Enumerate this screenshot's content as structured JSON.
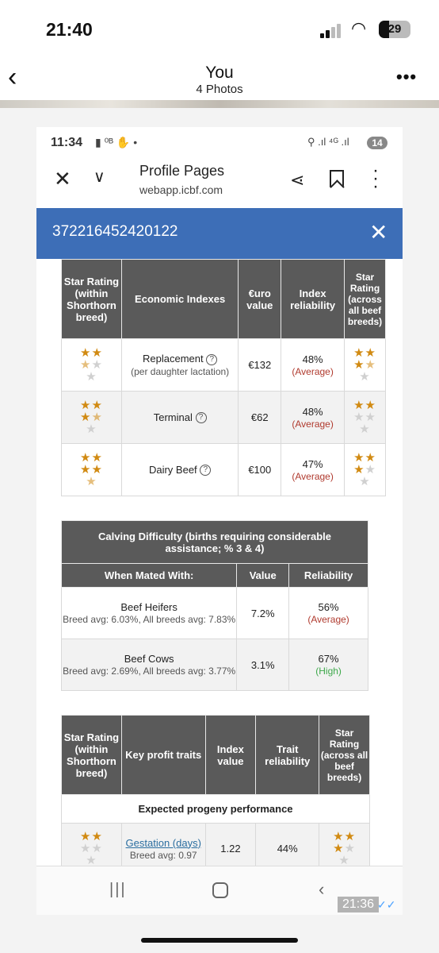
{
  "os": {
    "time": "21:40",
    "battery": "29"
  },
  "viewer": {
    "title": "You",
    "subtitle": "4 Photos"
  },
  "inner": {
    "time": "11:34",
    "status_icons": "▮ ⁰ᴮ ✋ •",
    "right_icons": "⚲ .ıl ⁴ᴳ .ıl",
    "badge": "14",
    "page_title": "Profile Pages",
    "url": "webapp.icbf.com",
    "animal_id": "372216452420122"
  },
  "economic": {
    "headers": [
      "Star Rating (within Shorthorn breed)",
      "Economic Indexes",
      "€uro value",
      "Index reliability",
      "Star Rating (across all beef breeds)"
    ],
    "rows": [
      {
        "name": "Replacement",
        "sub": "(per daughter lactation)",
        "value": "€132",
        "rel": "48%",
        "rel_label": "(Average)",
        "stars_breed": 2.5,
        "stars_all": 3.5
      },
      {
        "name": "Terminal",
        "sub": "",
        "value": "€62",
        "rel": "48%",
        "rel_label": "(Average)",
        "stars_breed": 3.5,
        "stars_all": 2
      },
      {
        "name": "Dairy Beef",
        "sub": "",
        "value": "€100",
        "rel": "47%",
        "rel_label": "(Average)",
        "stars_breed": 4.5,
        "stars_all": 3
      }
    ]
  },
  "calving": {
    "title": "Calving Difficulty (births requiring considerable assistance; % 3 & 4)",
    "headers": [
      "When Mated With:",
      "Value",
      "Reliability"
    ],
    "rows": [
      {
        "name": "Beef Heifers",
        "sub": "Breed avg: 6.03%, All breeds avg: 7.83%",
        "value": "7.2%",
        "rel": "56%",
        "rel_label": "(Average)",
        "level": "avg"
      },
      {
        "name": "Beef Cows",
        "sub": "Breed avg: 2.69%, All breeds avg: 3.77%",
        "value": "3.1%",
        "rel": "67%",
        "rel_label": "(High)",
        "level": "high"
      }
    ]
  },
  "profit": {
    "headers": [
      "Star Rating (within Shorthorn breed)",
      "Key profit traits",
      "Index value",
      "Trait reliability",
      "Star Rating (across all beef breeds)"
    ],
    "section": "Expected progeny performance",
    "rows": [
      {
        "name": "Gestation (days)",
        "sub": "Breed avg: 0.97",
        "value": "1.22",
        "rel": "44%",
        "stars_breed": 2,
        "stars_all": 3
      }
    ]
  },
  "nav": {
    "timestamp": "21:36"
  },
  "colors": {
    "accent_blue": "#3d6eb7",
    "star": "#d18a12",
    "header_gray": "#5a5a5a",
    "avg_red": "#b03a2e",
    "high_green": "#3da84a"
  }
}
